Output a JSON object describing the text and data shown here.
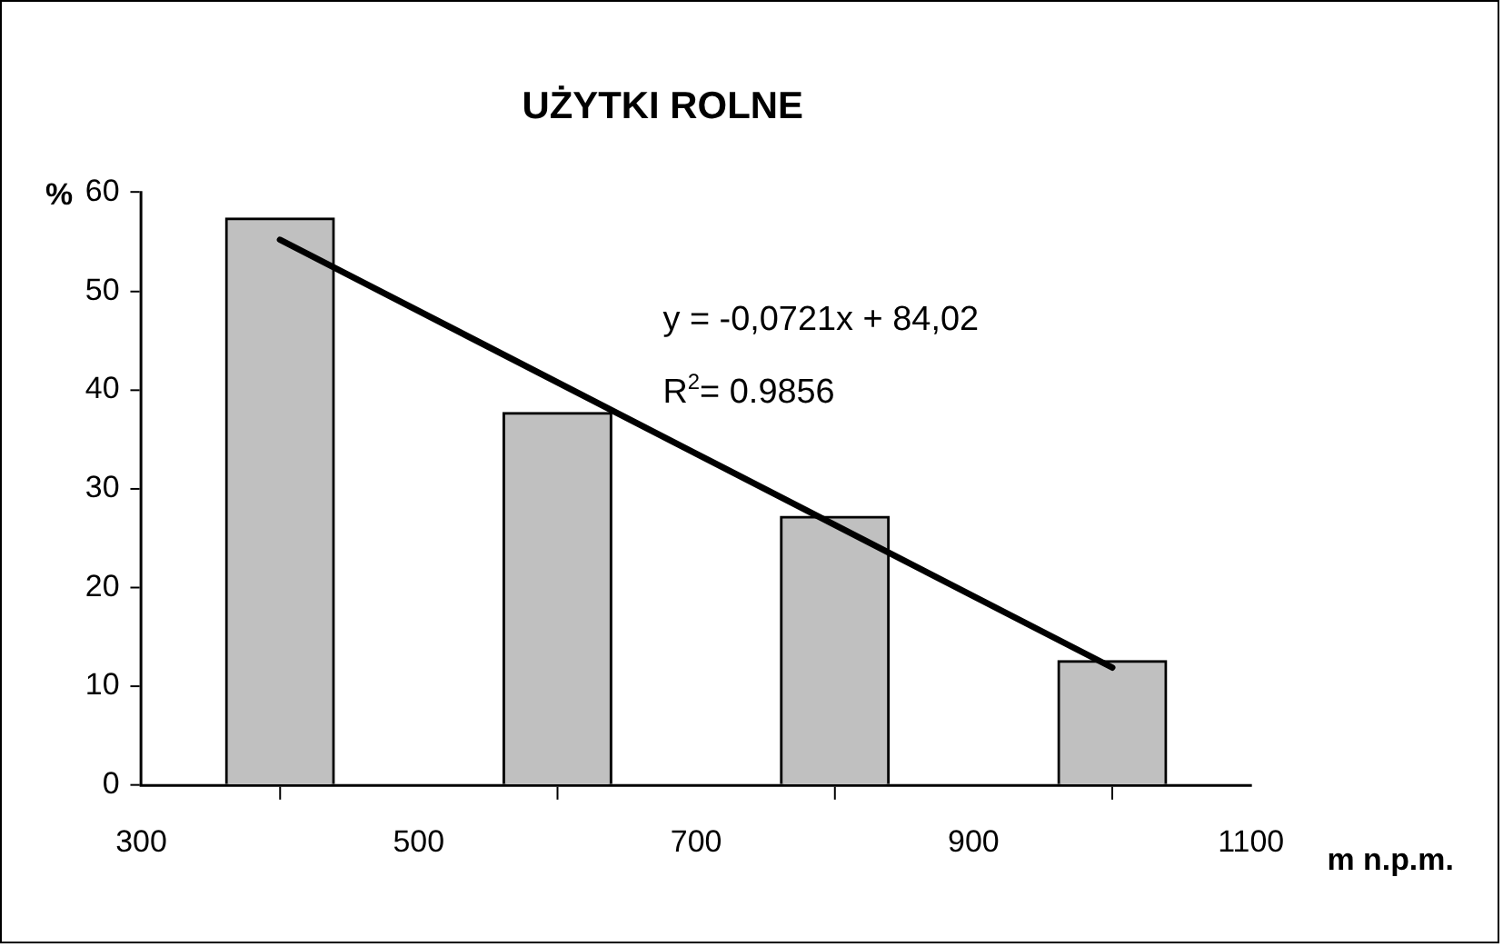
{
  "chart_data": {
    "type": "bar",
    "title": "UŻYTKI ROLNE",
    "xlabel": "m n.p.m.",
    "ylabel": "%",
    "x": [
      400,
      600,
      800,
      1000
    ],
    "series": [
      {
        "color": "#c0c0c0",
        "values": [
          57.4,
          37.7,
          27.2,
          12.6
        ]
      },
      {
        "type": "line",
        "color": "#000000",
        "x": [
          400,
          1000
        ],
        "values": [
          55.2,
          11.9
        ]
      }
    ],
    "xlim": [
      300,
      1100
    ],
    "xticks": [
      300,
      500,
      700,
      900,
      1100
    ],
    "ylim": [
      0,
      60
    ],
    "yticks": [
      0,
      10,
      20,
      30,
      40,
      50,
      60
    ],
    "grid": false,
    "legend": false,
    "annotations": [
      "y = -0,0721x + 84,02",
      "R$^{2}$= 0.9856"
    ]
  }
}
